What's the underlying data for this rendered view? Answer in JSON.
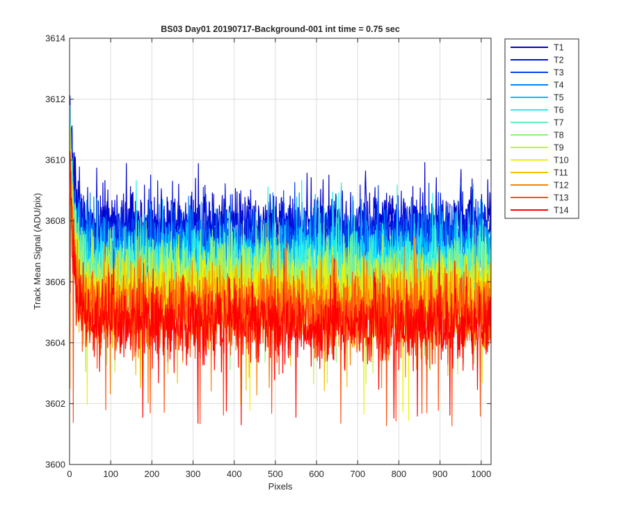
{
  "chart_data": {
    "type": "line",
    "title": "BS03 Day01 20190717-Background-001 int time = 0.75 sec",
    "xlabel": "Pixels",
    "ylabel": "Track Mean Signal (ADU/pix)",
    "xlim": [
      0,
      1024
    ],
    "ylim": [
      3600,
      3614
    ],
    "xticks": [
      0,
      100,
      200,
      300,
      400,
      500,
      600,
      700,
      800,
      900,
      1000
    ],
    "yticks": [
      3600,
      3602,
      3604,
      3606,
      3608,
      3610,
      3612,
      3614
    ],
    "grid": true,
    "legend_position": "outside-top-right",
    "x_range_points": [
      1,
      1024
    ],
    "series": [
      {
        "name": "T1",
        "color": "#0000c8",
        "mean": 3607.9,
        "noise_sd": 0.55,
        "start": 3612.0,
        "min": 3606.1,
        "max": 3610.1
      },
      {
        "name": "T2",
        "color": "#0010e0",
        "mean": 3607.6,
        "noise_sd": 0.55,
        "start": 3611.5,
        "min": 3605.8,
        "max": 3609.7
      },
      {
        "name": "T3",
        "color": "#0040f0",
        "mean": 3607.3,
        "noise_sd": 0.55,
        "start": 3611.2,
        "min": 3605.5,
        "max": 3609.3
      },
      {
        "name": "T4",
        "color": "#0080ff",
        "mean": 3607.0,
        "noise_sd": 0.55,
        "start": 3611.0,
        "min": 3605.2,
        "max": 3609.0
      },
      {
        "name": "T5",
        "color": "#00c0ff",
        "mean": 3606.8,
        "noise_sd": 0.55,
        "start": 3611.0,
        "min": 3605.0,
        "max": 3608.9
      },
      {
        "name": "T6",
        "color": "#20f0f0",
        "mean": 3606.6,
        "noise_sd": 0.55,
        "start": 3611.2,
        "min": 3604.8,
        "max": 3609.4
      },
      {
        "name": "T7",
        "color": "#60f0c0",
        "mean": 3606.3,
        "noise_sd": 0.6,
        "start": 3610.8,
        "min": 3604.4,
        "max": 3608.7
      },
      {
        "name": "T8",
        "color": "#90f080",
        "mean": 3606.0,
        "noise_sd": 0.6,
        "start": 3610.6,
        "min": 3603.0,
        "max": 3608.5
      },
      {
        "name": "T9",
        "color": "#c0f040",
        "mean": 3605.8,
        "noise_sd": 0.6,
        "start": 3610.4,
        "min": 3602.6,
        "max": 3608.3
      },
      {
        "name": "T10",
        "color": "#f0f000",
        "mean": 3605.6,
        "noise_sd": 0.6,
        "start": 3610.4,
        "min": 3601.4,
        "max": 3608.0
      },
      {
        "name": "T11",
        "color": "#f0c000",
        "mean": 3605.3,
        "noise_sd": 0.6,
        "start": 3610.2,
        "min": 3602.4,
        "max": 3607.8
      },
      {
        "name": "T12",
        "color": "#ff8000",
        "mean": 3605.1,
        "noise_sd": 0.65,
        "start": 3610.0,
        "min": 3602.0,
        "max": 3607.6
      },
      {
        "name": "T13",
        "color": "#ff5010",
        "mean": 3604.9,
        "noise_sd": 0.65,
        "start": 3610.0,
        "min": 3601.2,
        "max": 3607.4
      },
      {
        "name": "T14",
        "color": "#ff0000",
        "mean": 3604.7,
        "noise_sd": 0.65,
        "start": 3609.8,
        "min": 3601.3,
        "max": 3607.2
      }
    ]
  }
}
